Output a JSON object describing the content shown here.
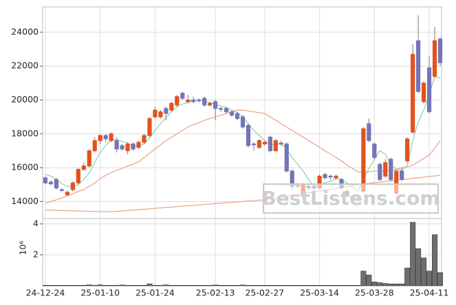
{
  "chart_data": {
    "type": "candlestick",
    "categories": [
      "24-12-24",
      null,
      null,
      null,
      null,
      null,
      null,
      null,
      null,
      null,
      "25-01-10",
      null,
      null,
      null,
      null,
      null,
      null,
      null,
      null,
      null,
      "25-01-24",
      null,
      null,
      null,
      null,
      null,
      null,
      null,
      null,
      null,
      null,
      "25-02-13",
      null,
      null,
      null,
      null,
      null,
      null,
      null,
      null,
      "25-02-27",
      null,
      null,
      null,
      null,
      null,
      null,
      null,
      null,
      null,
      "25-03-14",
      null,
      null,
      null,
      null,
      null,
      null,
      null,
      null,
      null,
      "25-03-28",
      null,
      null,
      null,
      null,
      null,
      null,
      null,
      null,
      null,
      "25-04-11",
      null,
      null
    ],
    "open": [
      15400,
      15150,
      15300,
      14700,
      14400,
      14700,
      15100,
      15900,
      16100,
      17000,
      17600,
      17900,
      17600,
      17600,
      17300,
      17000,
      17400,
      17200,
      17500,
      17900,
      19000,
      19000,
      19500,
      19400,
      19700,
      20400,
      19900,
      20000,
      20000,
      20100,
      19700,
      19900,
      19500,
      19500,
      19300,
      19200,
      19000,
      18500,
      17400,
      17200,
      17400,
      17800,
      17000,
      17400,
      17400,
      15800,
      14900,
      14400,
      14900,
      14900,
      14800,
      15600,
      15500,
      15400,
      15300,
      14600,
      14300,
      14200,
      14600,
      18600,
      17400,
      16200,
      15500,
      16500,
      14500,
      15800,
      16400,
      18100,
      23500,
      19900,
      21900,
      21400,
      23600
    ],
    "high": [
      15500,
      15250,
      15400,
      14800,
      14650,
      15200,
      16000,
      16300,
      17100,
      17800,
      18000,
      18000,
      18100,
      17800,
      17400,
      17500,
      17500,
      17600,
      18000,
      19000,
      19600,
      19400,
      19600,
      19900,
      20300,
      20500,
      20300,
      20200,
      20100,
      20200,
      19900,
      20000,
      19600,
      19600,
      19400,
      19300,
      19100,
      18600,
      17500,
      17700,
      17600,
      17900,
      17700,
      17600,
      17500,
      15900,
      15100,
      15100,
      15000,
      15000,
      15600,
      15700,
      15600,
      15600,
      15400,
      14700,
      14400,
      14300,
      18400,
      18900,
      17500,
      16300,
      16500,
      16600,
      15900,
      16000,
      17800,
      23300,
      25000,
      21100,
      22600,
      24300,
      23700
    ],
    "low": [
      15000,
      14950,
      14700,
      14550,
      14300,
      14600,
      15000,
      15800,
      16000,
      16900,
      17400,
      17500,
      17500,
      16900,
      17000,
      16800,
      17000,
      17100,
      17400,
      17800,
      18900,
      18900,
      18800,
      19300,
      19600,
      20000,
      19800,
      19800,
      19850,
      19600,
      19600,
      18800,
      19300,
      19200,
      19000,
      18800,
      18300,
      17200,
      17000,
      17100,
      17300,
      16900,
      16900,
      17300,
      15700,
      14700,
      14800,
      14300,
      14700,
      14700,
      14700,
      15300,
      15300,
      15300,
      14700,
      14300,
      14100,
      14000,
      14500,
      17500,
      16500,
      15200,
      15400,
      15200,
      14400,
      15200,
      16300,
      18000,
      20400,
      19800,
      19200,
      21300,
      22000
    ],
    "close": [
      15100,
      15050,
      14800,
      14650,
      14550,
      15100,
      15900,
      16100,
      17000,
      17600,
      17900,
      17700,
      18000,
      17100,
      17100,
      17400,
      17100,
      17500,
      17900,
      18900,
      19400,
      19300,
      19200,
      19800,
      20200,
      20100,
      20000,
      19900,
      19950,
      19700,
      19800,
      19500,
      19450,
      19300,
      19100,
      18900,
      18400,
      17300,
      17350,
      17600,
      17500,
      17000,
      17600,
      17450,
      15800,
      14900,
      14950,
      15000,
      14800,
      14800,
      15500,
      15400,
      15450,
      15500,
      14800,
      14400,
      14200,
      14100,
      18300,
      17600,
      16600,
      15300,
      16300,
      15300,
      15800,
      15300,
      17700,
      22700,
      20500,
      21000,
      19300,
      23500,
      22200
    ],
    "up_color": "#e4511e",
    "down_color": "#7474b8",
    "moving_averages": [
      {
        "color": "#8fd6b0",
        "values": [
          15600,
          15500,
          15300,
          15050,
          14900,
          14850,
          15000,
          15300,
          15700,
          16300,
          16900,
          17300,
          17650,
          17650,
          17550,
          17450,
          17250,
          17250,
          17400,
          17750,
          18200,
          18600,
          18950,
          19300,
          19600,
          19750,
          19850,
          20000,
          20000,
          19950,
          19850,
          19750,
          19650,
          19550,
          19400,
          19250,
          19000,
          18600,
          18200,
          17900,
          17600,
          17350,
          17400,
          17400,
          17100,
          16600,
          16200,
          15800,
          15300,
          14900,
          15000,
          15100,
          15200,
          15350,
          15300,
          15100,
          14850,
          14600,
          15300,
          15950,
          16500,
          17000,
          16800,
          16200,
          15900,
          15850,
          16100,
          17600,
          18700,
          19400,
          20300,
          21400,
          21300
        ]
      },
      {
        "color": "#eba88a",
        "values": [
          13900,
          14000,
          14100,
          14200,
          14350,
          14450,
          14600,
          14700,
          14900,
          15100,
          15350,
          15550,
          15700,
          15850,
          15950,
          16100,
          16200,
          16350,
          16600,
          16850,
          17100,
          17350,
          17600,
          17800,
          18000,
          18200,
          18400,
          18550,
          18650,
          18800,
          18900,
          19000,
          19100,
          19200,
          19300,
          19400,
          19400,
          19350,
          19300,
          19250,
          19200,
          19000,
          18800,
          18600,
          18400,
          18200,
          18000,
          17800,
          17600,
          17400,
          17200,
          17000,
          16800,
          16600,
          16400,
          16150,
          15950,
          15750,
          15750,
          15750,
          15800,
          15800,
          15800,
          15850,
          15900,
          16000,
          16050,
          16150,
          16350,
          16550,
          16750,
          17150,
          17600
        ]
      },
      {
        "color": "#eba88a",
        "values": [
          13500,
          13490,
          13480,
          13470,
          13460,
          13450,
          13440,
          13430,
          13420,
          13410,
          13400,
          13400,
          13400,
          13420,
          13440,
          13470,
          13490,
          13520,
          13540,
          13570,
          13600,
          13620,
          13650,
          13670,
          13700,
          13720,
          13750,
          13770,
          13800,
          13830,
          13850,
          13880,
          13900,
          13930,
          13950,
          13980,
          14000,
          14030,
          14050,
          14080,
          14100,
          14150,
          14200,
          14250,
          14300,
          14360,
          14410,
          14470,
          14520,
          14570,
          14620,
          14680,
          14730,
          14780,
          14840,
          14890,
          14950,
          15000,
          15040,
          15070,
          15110,
          15150,
          15180,
          15220,
          15260,
          15300,
          15330,
          15370,
          15400,
          15440,
          15480,
          15510,
          15550
        ]
      }
    ],
    "ylim": [
      13000,
      25500
    ],
    "yticks": [
      14000,
      16000,
      18000,
      20000,
      22000,
      24000
    ],
    "grid": true,
    "volume": {
      "color": "#6e6e6e",
      "multiplier": "10⁶",
      "ylim": [
        0,
        4.35
      ],
      "yticks": [
        2,
        4
      ],
      "values": [
        0.03,
        0.03,
        0.03,
        0.03,
        0.03,
        0.03,
        0.03,
        0.03,
        0.06,
        0.03,
        0.06,
        0.03,
        0.03,
        0.03,
        0.05,
        0.03,
        0.03,
        0.03,
        0.03,
        0.12,
        0.03,
        0.03,
        0.06,
        0.03,
        0.03,
        0.03,
        0.03,
        0.03,
        0.03,
        0.03,
        0.03,
        0.05,
        0.03,
        0.03,
        0.03,
        0.03,
        0.05,
        0.03,
        0.03,
        0.03,
        0.03,
        0.03,
        0.03,
        0.03,
        0.03,
        0.03,
        0.03,
        0.03,
        0.03,
        0.03,
        0.03,
        0.03,
        0.03,
        0.03,
        0.03,
        0.03,
        0.03,
        0.03,
        0.95,
        0.7,
        0.25,
        0.2,
        0.15,
        0.12,
        0.12,
        0.12,
        1.15,
        4.1,
        2.4,
        1.8,
        0.95,
        3.3,
        0.85
      ]
    },
    "watermark": "BestListens.com"
  }
}
